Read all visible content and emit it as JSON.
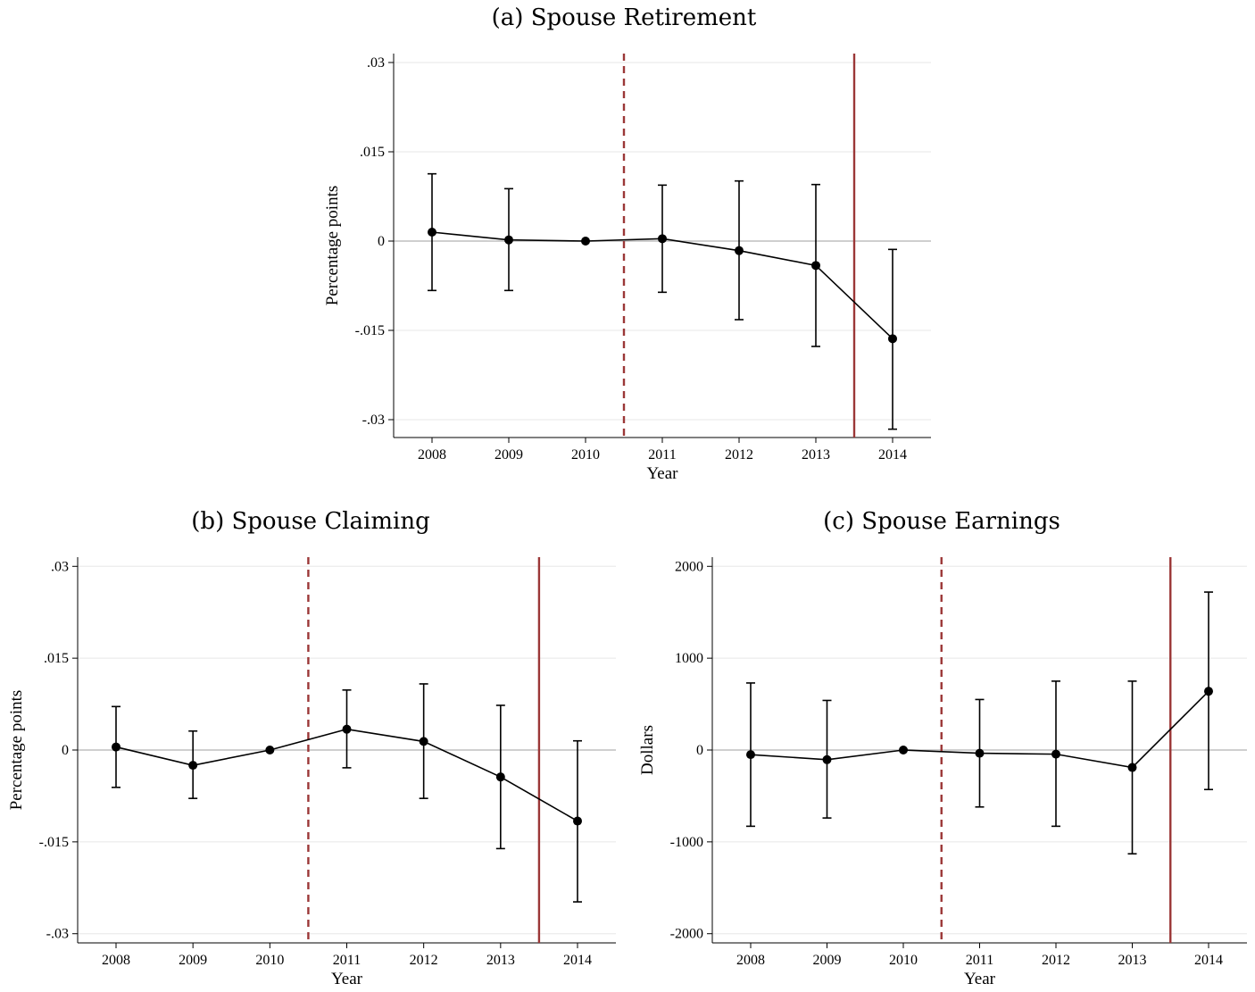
{
  "chart_data": [
    {
      "type": "line",
      "title": "(a) Spouse Retirement",
      "xlabel": "Year",
      "ylabel": "Percentage points",
      "categories": [
        "2008",
        "2009",
        "2010",
        "2011",
        "2012",
        "2013",
        "2014"
      ],
      "y_ticks": [
        ".03",
        ".015",
        "0",
        "-.015",
        "-.03"
      ],
      "y_tick_values": [
        0.03,
        0.015,
        0,
        -0.015,
        -0.03
      ],
      "ylim": [
        -0.033,
        0.0315
      ],
      "values": [
        0.0015,
        0.0002,
        0.0,
        0.0004,
        -0.0016,
        -0.0041,
        -0.0164
      ],
      "ci_low": [
        -0.0083,
        -0.0083,
        0.0,
        -0.0086,
        -0.0132,
        -0.0177,
        -0.0316
      ],
      "ci_high": [
        0.0113,
        0.0088,
        0.0,
        0.0094,
        0.0101,
        0.0095,
        -0.0014
      ],
      "dashed_line_x": 2010.5,
      "solid_line_x": 2013.5,
      "grid": true,
      "reference_line_y": 0,
      "colors": {
        "series": "#000000",
        "ci": "#000000",
        "vertical_lines": "#9b3737",
        "grid": "#ececec",
        "reference_line": "#cfcfcf"
      }
    },
    {
      "type": "line",
      "title": "(b) Spouse Claiming",
      "xlabel": "Year",
      "ylabel": "Percentage points",
      "categories": [
        "2008",
        "2009",
        "2010",
        "2011",
        "2012",
        "2013",
        "2014"
      ],
      "y_ticks": [
        ".03",
        ".015",
        "0",
        "-.015",
        "-.03"
      ],
      "y_tick_values": [
        0.03,
        0.015,
        0,
        -0.015,
        -0.03
      ],
      "ylim": [
        -0.0315,
        0.0315
      ],
      "values": [
        0.0005,
        -0.0025,
        0.0,
        0.0034,
        0.0014,
        -0.0044,
        -0.0116
      ],
      "ci_low": [
        -0.0061,
        -0.0079,
        0.0,
        -0.0029,
        -0.0079,
        -0.0161,
        -0.0248
      ],
      "ci_high": [
        0.0071,
        0.0031,
        0.0,
        0.0098,
        0.0108,
        0.0073,
        0.0015
      ],
      "dashed_line_x": 2010.5,
      "solid_line_x": 2013.5,
      "grid": true,
      "reference_line_y": 0,
      "colors": {
        "series": "#000000",
        "ci": "#000000",
        "vertical_lines": "#9b3737",
        "grid": "#ececec",
        "reference_line": "#cfcfcf"
      }
    },
    {
      "type": "line",
      "title": "(c) Spouse Earnings",
      "xlabel": "Year",
      "ylabel": "Dollars",
      "categories": [
        "2008",
        "2009",
        "2010",
        "2011",
        "2012",
        "2013",
        "2014"
      ],
      "y_ticks": [
        "2000",
        "1000",
        "0",
        "-1000",
        "-2000"
      ],
      "y_tick_values": [
        2000,
        1000,
        0,
        -1000,
        -2000
      ],
      "ylim": [
        -2100,
        2100
      ],
      "values": [
        -50,
        -105,
        0,
        -35,
        -45,
        -190,
        640
      ],
      "ci_low": [
        -830,
        -740,
        0,
        -620,
        -830,
        -1130,
        -430
      ],
      "ci_high": [
        730,
        540,
        0,
        550,
        750,
        750,
        1720
      ],
      "dashed_line_x": 2010.5,
      "solid_line_x": 2013.5,
      "grid": true,
      "reference_line_y": 0,
      "colors": {
        "series": "#000000",
        "ci": "#000000",
        "vertical_lines": "#9b3737",
        "grid": "#ececec",
        "reference_line": "#cfcfcf"
      }
    }
  ]
}
